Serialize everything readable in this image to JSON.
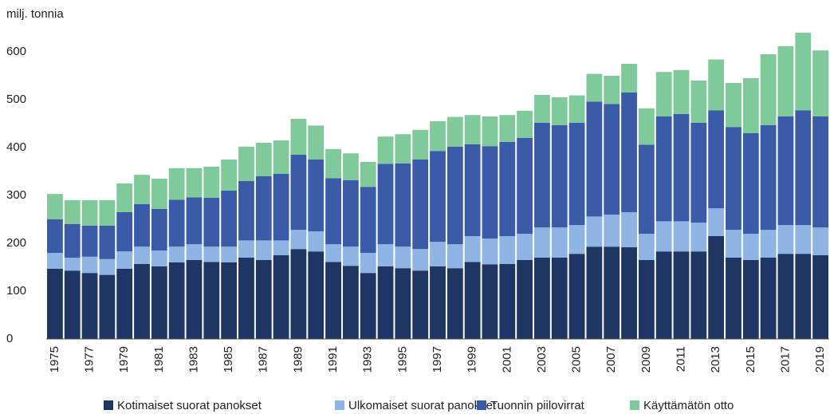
{
  "chart_data": {
    "type": "stacked-bar",
    "y_axis_label": "milj. tonnia",
    "categories": [
      "1975",
      null,
      "1977",
      null,
      "1979",
      null,
      "1981",
      null,
      "1983",
      null,
      "1985",
      null,
      "1987",
      null,
      "1989",
      null,
      "1991",
      null,
      "1993",
      null,
      "1995",
      null,
      "1997",
      null,
      "1999",
      null,
      "2001",
      null,
      "2003",
      null,
      "2005",
      null,
      "2007",
      null,
      "2009",
      null,
      "2011",
      null,
      "2013",
      null,
      "2015",
      null,
      "2017",
      null,
      "2019"
    ],
    "series": [
      {
        "name": "Kotimaiset suorat panokset",
        "color": "#1f3564",
        "values": [
          147,
          143,
          138,
          134,
          147,
          157,
          152,
          160,
          165,
          161,
          160,
          170,
          165,
          175,
          188,
          183,
          161,
          153,
          138,
          152,
          148,
          143,
          152,
          148,
          161,
          156,
          157,
          165,
          170,
          170,
          178,
          193,
          193,
          192,
          165,
          183,
          183,
          183,
          215,
          170,
          165,
          170,
          178,
          178,
          175
        ]
      },
      {
        "name": "Ulkomaiset suorat panokset",
        "color": "#8db4e2",
        "values": [
          33,
          27,
          34,
          33,
          36,
          36,
          33,
          33,
          33,
          32,
          33,
          36,
          41,
          31,
          40,
          42,
          37,
          40,
          42,
          46,
          45,
          45,
          51,
          50,
          54,
          54,
          58,
          55,
          63,
          63,
          60,
          63,
          67,
          73,
          55,
          63,
          63,
          60,
          58,
          58,
          55,
          58,
          60,
          60,
          58
        ]
      },
      {
        "name": "Tuonnin piilovirrat",
        "color": "#3a5ca8",
        "values": [
          70,
          70,
          65,
          70,
          82,
          89,
          87,
          98,
          98,
          102,
          117,
          124,
          134,
          139,
          157,
          150,
          138,
          139,
          138,
          168,
          174,
          187,
          190,
          204,
          192,
          193,
          197,
          200,
          219,
          214,
          214,
          240,
          231,
          250,
          186,
          219,
          224,
          209,
          205,
          215,
          210,
          219,
          227,
          240,
          232
        ]
      },
      {
        "name": "Käyttämätön otto",
        "color": "#7fc99a",
        "values": [
          53,
          50,
          53,
          53,
          60,
          61,
          63,
          66,
          61,
          65,
          65,
          72,
          70,
          70,
          75,
          71,
          61,
          56,
          52,
          57,
          61,
          62,
          62,
          62,
          61,
          62,
          56,
          57,
          58,
          58,
          57,
          58,
          59,
          60,
          76,
          93,
          92,
          88,
          106,
          92,
          115,
          148,
          147,
          162,
          138
        ]
      }
    ],
    "ylim": [
      0,
      700
    ],
    "yticks": [
      0,
      100,
      200,
      300,
      400,
      500,
      600
    ],
    "grid": false
  }
}
